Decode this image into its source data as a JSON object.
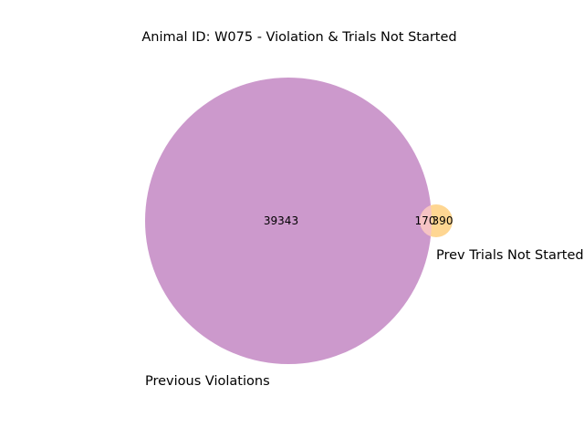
{
  "title": "Animal ID: W075 - Violation & Trials Not Started",
  "venn": {
    "sets": [
      {
        "label": "Previous Violations",
        "color": "#cc99cc"
      },
      {
        "label": "Prev Trials Not Started",
        "color": "#fed692"
      }
    ],
    "overlap_color": "#f6c4c4",
    "counts": {
      "only_a": "39343",
      "both": "170",
      "only_b": "390"
    }
  }
}
